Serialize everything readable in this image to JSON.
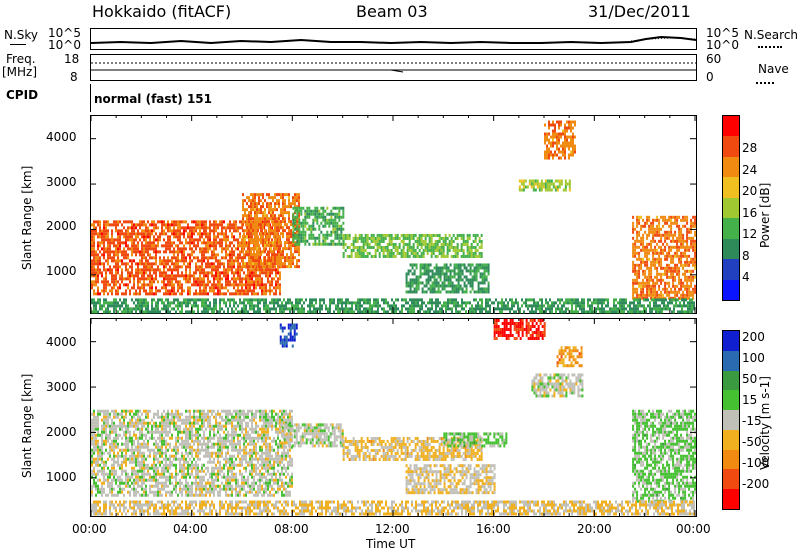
{
  "header": {
    "station": "Hokkaido (fitACF)",
    "beam": "Beam 03",
    "date": "31/Dec/2011"
  },
  "side_labels": {
    "nsky": "N.Sky",
    "freq": "Freq.",
    "freq_unit": "[MHz]",
    "cpid": "CPID",
    "nsearch": "N.Search",
    "nave": "Nave"
  },
  "cpid_text": "normal (fast) 151",
  "nsky_ticks": {
    "top": "10^5",
    "bottom": "10^0"
  },
  "nsearch_ticks": {
    "top": "10^5",
    "bottom": "10^0"
  },
  "freq_ticks": {
    "top": "18",
    "bottom": "8"
  },
  "nave_ticks": {
    "top": "60",
    "bottom": "0"
  },
  "xaxis": {
    "label": "Time UT",
    "ticks": [
      "00:00",
      "04:00",
      "08:00",
      "12:00",
      "16:00",
      "20:00",
      "00:00"
    ]
  },
  "yaxis": {
    "label": "Slant Range [km]",
    "ticks": [
      "1000",
      "2000",
      "3000",
      "4000"
    ]
  },
  "colors": {
    "power_scale": [
      "#0a14ff",
      "#2040c0",
      "#2f8a5a",
      "#44b04a",
      "#a0c830",
      "#f0c020",
      "#f08a10",
      "#f04a10",
      "#ff0000"
    ],
    "velocity_scale": [
      "#ff0000",
      "#f04a10",
      "#f08a10",
      "#f0b020",
      "#c0c0b8",
      "#44c030",
      "#3a9a40",
      "#2a6ab0",
      "#1020d0"
    ]
  },
  "chart_data": [
    {
      "type": "heatmap",
      "title": "",
      "xlabel": "Time UT",
      "ylabel": "Slant Range [km]",
      "xlim": [
        "00:00",
        "24:00"
      ],
      "ylim": [
        180,
        4500
      ],
      "colorbar": {
        "label": "Power [dB]",
        "ticks": [
          "4",
          "8",
          "12",
          "16",
          "20",
          "24",
          "28"
        ],
        "range": [
          0,
          32
        ]
      },
      "regions": [
        {
          "t_start": 0.0,
          "t_end": 7.5,
          "r_min": 600,
          "r_max": 2200,
          "value_db": 26
        },
        {
          "t_start": 6.0,
          "t_end": 8.3,
          "r_min": 1200,
          "r_max": 2800,
          "value_db": 24
        },
        {
          "t_start": 8.0,
          "t_end": 10.0,
          "r_min": 1700,
          "r_max": 2500,
          "value_db": 12
        },
        {
          "t_start": 10.0,
          "t_end": 15.5,
          "r_min": 1400,
          "r_max": 1900,
          "value_db": 14
        },
        {
          "t_start": 12.5,
          "t_end": 15.8,
          "r_min": 650,
          "r_max": 1250,
          "value_db": 10
        },
        {
          "t_start": 17.0,
          "t_end": 19.0,
          "r_min": 2850,
          "r_max": 3100,
          "value_db": 16
        },
        {
          "t_start": 18.0,
          "t_end": 19.2,
          "r_min": 3600,
          "r_max": 4400,
          "value_db": 24
        },
        {
          "t_start": 21.5,
          "t_end": 24.0,
          "r_min": 500,
          "r_max": 2300,
          "value_db": 24
        },
        {
          "t_start": 0.0,
          "t_end": 24.0,
          "r_min": 200,
          "r_max": 480,
          "value_db": 10
        }
      ]
    },
    {
      "type": "heatmap",
      "title": "",
      "xlabel": "Time UT",
      "ylabel": "Slant Range [km]",
      "xlim": [
        "00:00",
        "24:00"
      ],
      "ylim": [
        180,
        4500
      ],
      "colorbar": {
        "label": "Velocity [m s-1]",
        "ticks": [
          "-200",
          "-100",
          "-50",
          "-15",
          "15",
          "50",
          "100",
          "200"
        ],
        "range": [
          -250,
          250
        ]
      },
      "regions": [
        {
          "t_start": 0.0,
          "t_end": 8.0,
          "r_min": 600,
          "r_max": 2500,
          "value_ms": 0
        },
        {
          "t_start": 7.5,
          "t_end": 10.0,
          "r_min": 1700,
          "r_max": 2200,
          "value_ms": 0
        },
        {
          "t_start": 10.0,
          "t_end": 15.5,
          "r_min": 1400,
          "r_max": 1900,
          "value_ms": -40
        },
        {
          "t_start": 12.5,
          "t_end": 16.0,
          "r_min": 700,
          "r_max": 1300,
          "value_ms": -20
        },
        {
          "t_start": 14.0,
          "t_end": 16.5,
          "r_min": 1700,
          "r_max": 2000,
          "value_ms": 40
        },
        {
          "t_start": 17.5,
          "t_end": 19.5,
          "r_min": 2800,
          "r_max": 3300,
          "value_ms": 0
        },
        {
          "t_start": 18.5,
          "t_end": 19.5,
          "r_min": 3500,
          "r_max": 3900,
          "value_ms": -100
        },
        {
          "t_start": 16.0,
          "t_end": 18.0,
          "r_min": 4100,
          "r_max": 4500,
          "value_ms": -200
        },
        {
          "t_start": 7.5,
          "t_end": 8.2,
          "r_min": 3900,
          "r_max": 4400,
          "value_ms": 200
        },
        {
          "t_start": 21.5,
          "t_end": 24.0,
          "r_min": 500,
          "r_max": 2500,
          "value_ms": 40
        },
        {
          "t_start": 0.0,
          "t_end": 24.0,
          "r_min": 200,
          "r_max": 500,
          "value_ms": -30
        }
      ]
    }
  ]
}
